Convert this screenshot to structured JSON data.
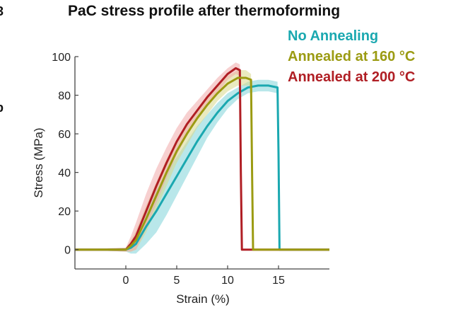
{
  "panel_fragments": {
    "top_left": "3",
    "left_edge": "b"
  },
  "chart_data": {
    "type": "line",
    "title": "PaC stress profile after thermoforming",
    "xlabel": "Strain (%)",
    "ylabel": "Stress (MPa)",
    "xlim": [
      -5,
      20
    ],
    "ylim": [
      -10,
      100
    ],
    "xticks": [
      0,
      5,
      10,
      15
    ],
    "yticks": [
      0,
      20,
      40,
      60,
      80,
      100
    ],
    "legend_position": "top-right",
    "series": [
      {
        "name": "No Annealing",
        "color": "#1aa8b0",
        "band_color": "#7fd3d8",
        "x": [
          -5,
          0,
          0.5,
          1,
          2,
          3,
          4,
          5,
          6,
          7,
          8,
          9,
          10,
          11,
          12,
          13,
          14,
          14.9,
          15,
          15.1,
          20
        ],
        "y": [
          0,
          0,
          1,
          3,
          12,
          20,
          29,
          38,
          47,
          56,
          64,
          71,
          77,
          81,
          84,
          85,
          85,
          84,
          50,
          0,
          0
        ],
        "band": [
          0,
          1,
          3,
          5,
          9,
          11,
          11,
          10,
          9,
          8,
          6,
          5,
          4,
          3,
          3,
          3,
          3,
          3,
          3,
          0,
          0
        ]
      },
      {
        "name": "Annealed at 160 °C",
        "color": "#9b9b12",
        "band_color": "#d9d98a",
        "x": [
          -5,
          0,
          0.5,
          1,
          2,
          3,
          4,
          5,
          6,
          7,
          8,
          9,
          10,
          11,
          11.8,
          12.3,
          12.4,
          12.5,
          20
        ],
        "y": [
          0,
          0,
          2,
          5,
          16,
          28,
          40,
          51,
          60,
          68,
          75,
          81,
          86,
          89,
          89,
          88,
          40,
          0,
          0
        ],
        "band": [
          0,
          1,
          3,
          5,
          7,
          7,
          7,
          6,
          6,
          5,
          5,
          4,
          4,
          4,
          4,
          3,
          3,
          0,
          0
        ]
      },
      {
        "name": "Annealed at 200 °C",
        "color": "#b01e24",
        "band_color": "#f1aaaa",
        "x": [
          -5,
          0,
          0.5,
          1,
          2,
          3,
          4,
          5,
          6,
          7,
          8,
          9,
          10,
          10.8,
          11.2,
          11.3,
          11.4,
          20
        ],
        "y": [
          0,
          0,
          3,
          7,
          20,
          33,
          45,
          56,
          65,
          72,
          79,
          85,
          91,
          94,
          93,
          40,
          0,
          0
        ],
        "band": [
          0,
          1,
          4,
          7,
          9,
          9,
          8,
          7,
          6,
          5,
          4,
          4,
          3,
          3,
          3,
          3,
          0,
          0
        ]
      }
    ]
  }
}
